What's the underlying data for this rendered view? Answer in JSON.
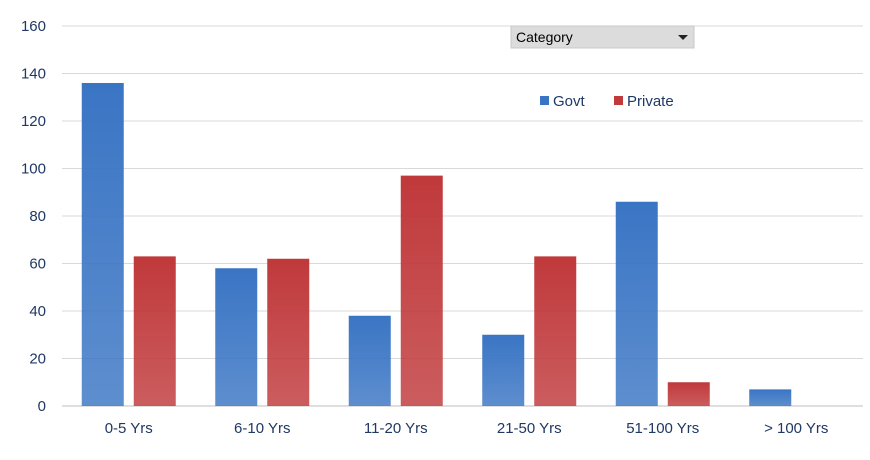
{
  "filter_dropdown": {
    "label": "Category",
    "icon": "caret-down-icon"
  },
  "chart_data": {
    "type": "bar",
    "categories": [
      "0-5 Yrs",
      "6-10 Yrs",
      "11-20 Yrs",
      "21-50 Yrs",
      "51-100 Yrs",
      "> 100 Yrs"
    ],
    "series": [
      {
        "name": "Govt",
        "values": [
          136,
          58,
          38,
          30,
          86,
          7
        ],
        "color": "#3a75c4"
      },
      {
        "name": "Private",
        "values": [
          63,
          62,
          97,
          63,
          10,
          0
        ],
        "color": "#c0393b"
      }
    ],
    "title": "",
    "xlabel": "",
    "ylabel": "",
    "ylim": [
      0,
      160
    ],
    "yticks": [
      0,
      20,
      40,
      60,
      80,
      100,
      120,
      140,
      160
    ],
    "grid": true,
    "legend_position": "top-right"
  }
}
